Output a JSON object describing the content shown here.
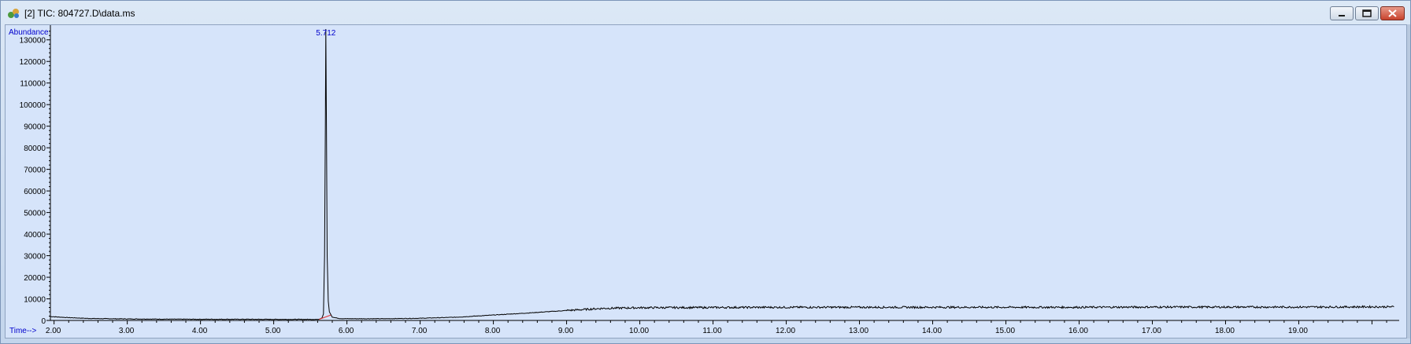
{
  "window": {
    "title": "[2] TIC: 804727.D\\data.ms",
    "icon": "chromatogram-app-icon",
    "buttons": [
      "minimize-icon",
      "restore-icon",
      "close-icon"
    ]
  },
  "chart_data": {
    "type": "line",
    "title": "",
    "xlabel": "Time-->",
    "ylabel": "Abundance",
    "xlim": [
      1.95,
      20.35
    ],
    "ylim": [
      0,
      135000
    ],
    "x_ticks": [
      "2.00",
      "3.00",
      "4.00",
      "5.00",
      "6.00",
      "7.00",
      "8.00",
      "9.00",
      "10.00",
      "11.00",
      "12.00",
      "13.00",
      "14.00",
      "15.00",
      "16.00",
      "17.00",
      "18.00",
      "19.00"
    ],
    "y_ticks": [
      "0",
      "10000",
      "20000",
      "30000",
      "40000",
      "50000",
      "60000",
      "70000",
      "80000",
      "90000",
      "100000",
      "110000",
      "120000",
      "130000"
    ],
    "peak_labels": [
      {
        "x": 5.712,
        "label": "5.712"
      }
    ],
    "series": [
      {
        "color": "#000000",
        "x": [
          1.95,
          2.2,
          2.5,
          3.0,
          3.5,
          4.0,
          4.5,
          5.0,
          5.5,
          5.62,
          5.66,
          5.68,
          5.695,
          5.705,
          5.712,
          5.72,
          5.73,
          5.745,
          5.76,
          5.8,
          5.9,
          6.0,
          6.5,
          7.0,
          7.5,
          8.0,
          8.5,
          9.0,
          9.5,
          10.0,
          11.0,
          12.0,
          13.0,
          14.0,
          15.0,
          16.0,
          17.0,
          18.0,
          19.0,
          20.0,
          20.3
        ],
        "y": [
          1800,
          1300,
          900,
          700,
          600,
          550,
          550,
          500,
          500,
          500,
          1200,
          3000,
          30000,
          90000,
          135000,
          90000,
          30000,
          9000,
          4000,
          1500,
          900,
          800,
          800,
          1000,
          1500,
          2500,
          3500,
          4600,
          5600,
          5900,
          6000,
          6100,
          6100,
          6100,
          6100,
          6100,
          6200,
          6200,
          6200,
          6300,
          6300
        ]
      }
    ],
    "baseline": {
      "color": "#e03030",
      "x": [
        5.62,
        5.78
      ],
      "y": [
        500,
        2500
      ]
    },
    "label_color": "#0000cc",
    "background": "#d6e4fa"
  }
}
